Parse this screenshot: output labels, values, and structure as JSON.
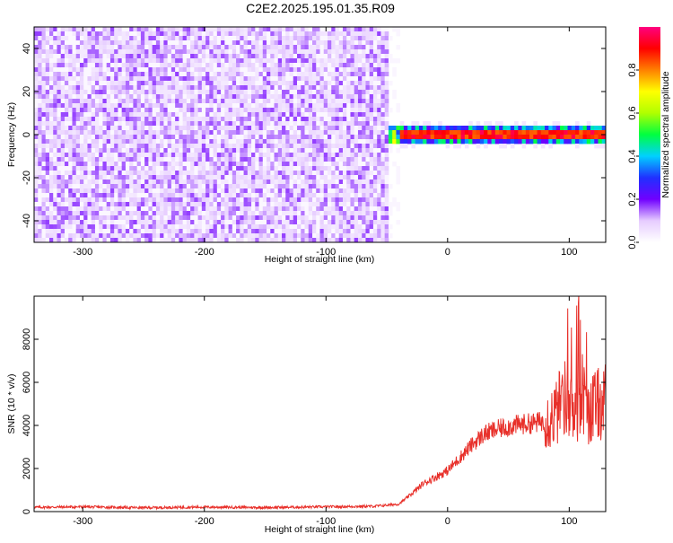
{
  "title": "C2E2.2025.195.01.35.R09",
  "chart_data": [
    {
      "type": "heatmap",
      "xlabel": "Height of straight line (km)",
      "ylabel": "Frequency (Hz)",
      "xlim": [
        -340,
        130
      ],
      "ylim": [
        -50,
        50
      ],
      "xticks": [
        -300,
        -200,
        -100,
        0,
        100
      ],
      "yticks": [
        -40,
        -20,
        0,
        20,
        40
      ],
      "colorbar": {
        "label": "Normalized spectral amplitude",
        "range": [
          0,
          1
        ],
        "ticks": [
          0.0,
          0.2,
          0.4,
          0.6,
          0.8
        ],
        "colors": [
          "#ffffff",
          "#e6ccff",
          "#7000ff",
          "#2030ff",
          "#00d0ff",
          "#00ff40",
          "#b0ff00",
          "#ffff00",
          "#ff8000",
          "#ff0000",
          "#ff0080"
        ]
      },
      "noise_region": {
        "x_range": [
          -340,
          -50
        ],
        "amplitude_range": [
          0.02,
          0.15
        ]
      },
      "signal_band": {
        "x_range": [
          -50,
          130
        ],
        "frequency_hz": 0,
        "peak_amplitude": 1.0
      }
    },
    {
      "type": "line",
      "xlabel": "Height of straight line (km)",
      "ylabel": "SNR (10 * v/v)",
      "xlim": [
        -340,
        130
      ],
      "ylim": [
        0,
        10000
      ],
      "xticks": [
        -300,
        -200,
        -100,
        0,
        100
      ],
      "yticks": [
        0,
        2000,
        4000,
        6000,
        8000
      ],
      "color": "#e8302a",
      "series": [
        {
          "x": [
            -340,
            -300,
            -250,
            -200,
            -150,
            -100,
            -60,
            -40,
            -30,
            -20,
            -10,
            0,
            10,
            20,
            30,
            40,
            50,
            60,
            70,
            80,
            90,
            95,
            100,
            105,
            110,
            115,
            120,
            130
          ],
          "y": [
            200,
            220,
            180,
            210,
            190,
            220,
            250,
            350,
            800,
            1300,
            1600,
            1900,
            2500,
            3100,
            3600,
            3800,
            3950,
            4050,
            4100,
            4200,
            4600,
            5400,
            5000,
            4200,
            5800,
            4700,
            4900,
            5100
          ]
        }
      ]
    }
  ]
}
